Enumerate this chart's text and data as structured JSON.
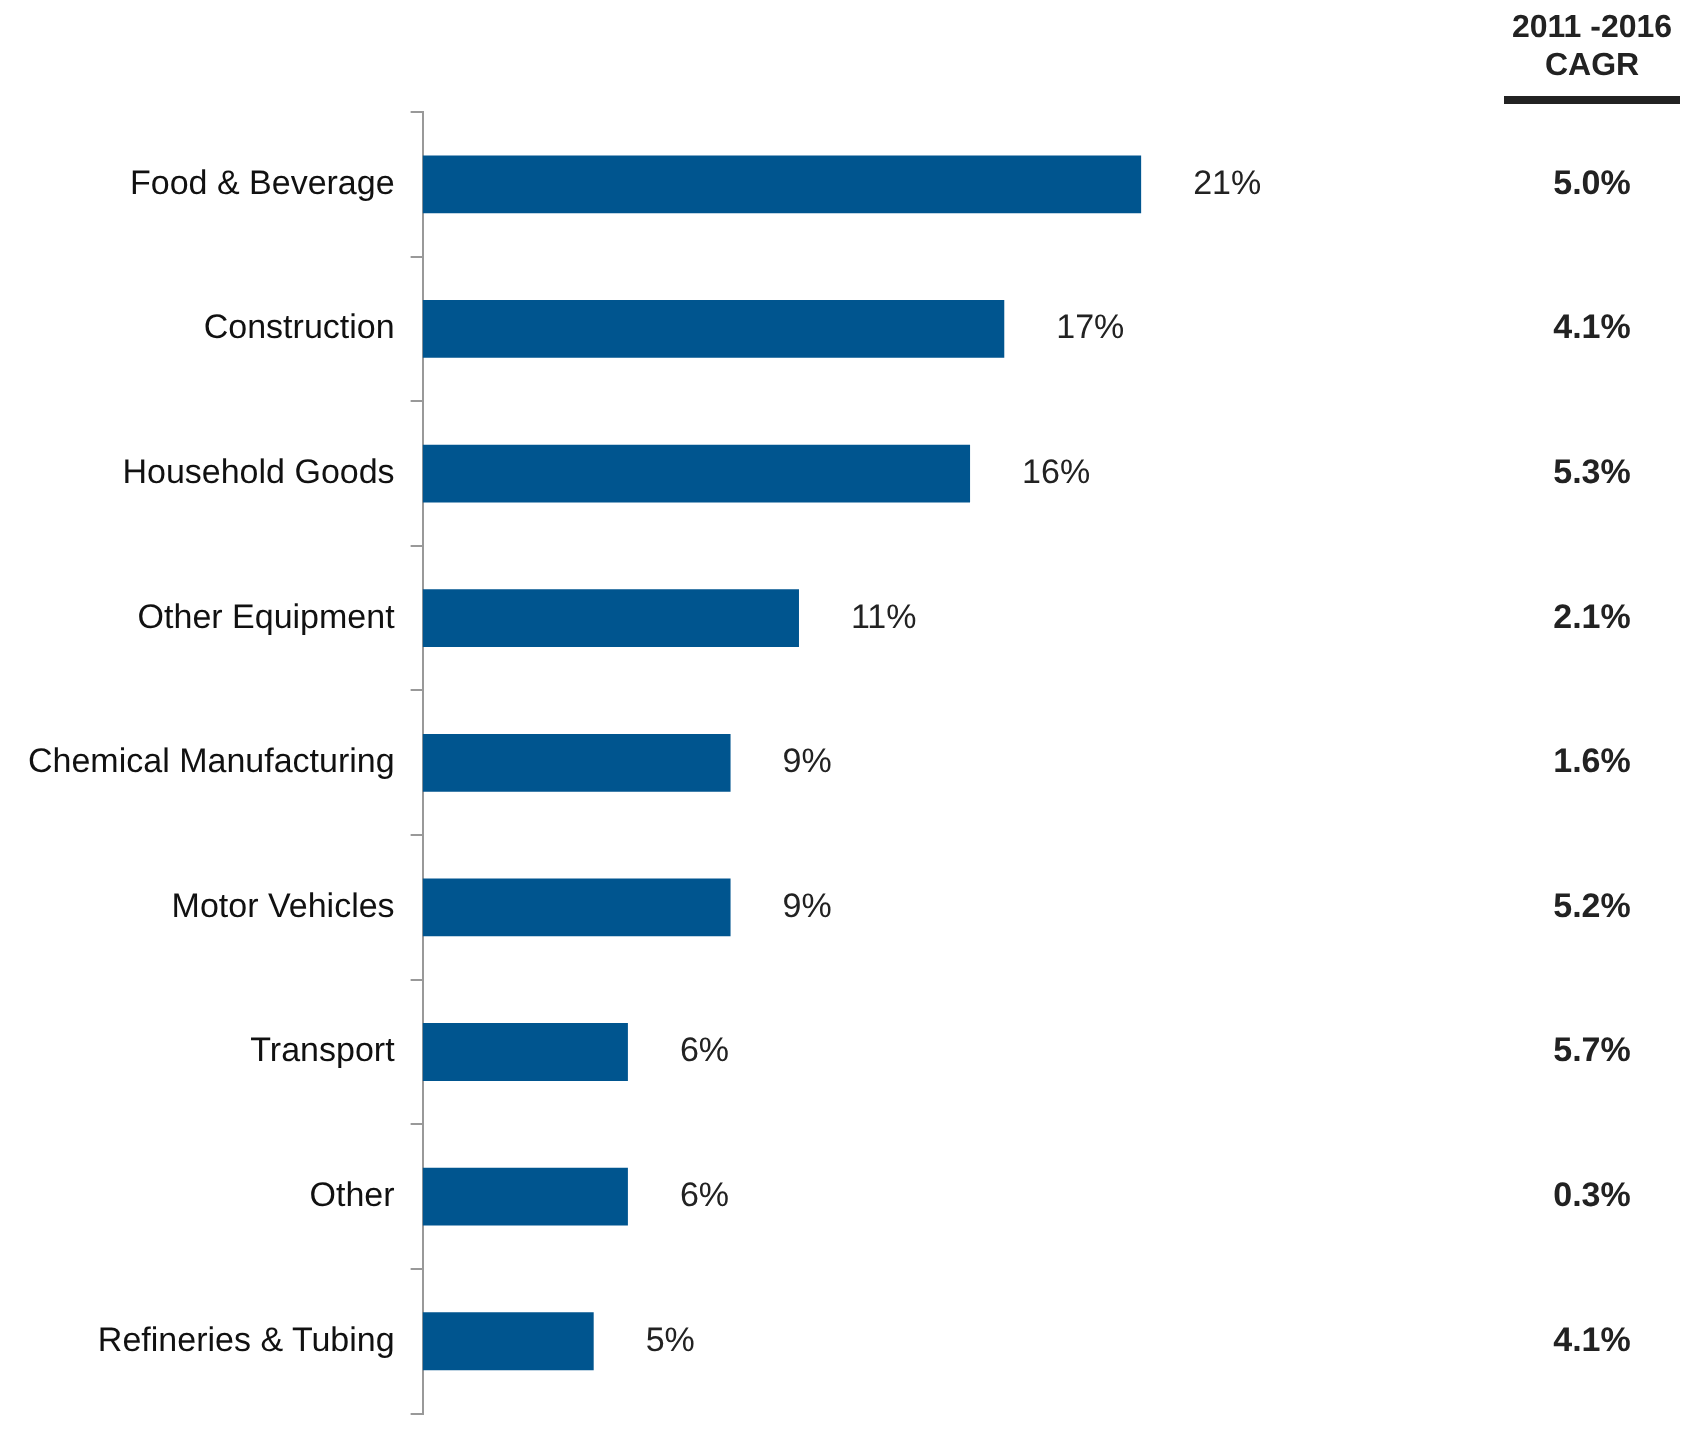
{
  "chart_data": {
    "type": "bar",
    "orientation": "horizontal",
    "categories": [
      "Food & Beverage",
      "Construction",
      "Household Goods",
      "Other Equipment",
      "Chemical Manufacturing",
      "Motor Vehicles",
      "Transport",
      "Other",
      "Refineries & Tubing"
    ],
    "values": [
      21,
      17,
      16,
      11,
      9,
      9,
      6,
      6,
      5
    ],
    "value_labels": [
      "21%",
      "17%",
      "16%",
      "11%",
      "9%",
      "9%",
      "6%",
      "6%",
      "5%"
    ],
    "color": "#00558f",
    "tick_labels": "y",
    "legend": false,
    "annotations": [
      "2011 -2016 CAGR",
      "5.0%",
      "4.1%",
      "5.3%",
      "2.1%",
      "1.6%",
      "5.2%",
      "5.7%",
      "0.3%",
      "4.1%"
    ]
  }
}
